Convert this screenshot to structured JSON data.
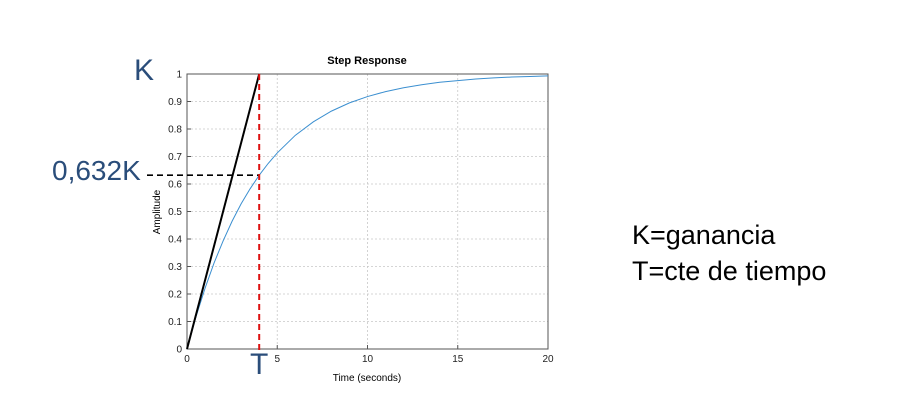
{
  "annotations": {
    "k_label": "K",
    "k632_label": "0,632K",
    "t_label": "T",
    "legend_k": "K=ganancia",
    "legend_t": "T=cte de tiempo"
  },
  "chart_data": {
    "type": "line",
    "title": "Step Response",
    "xlabel": "Time (seconds)",
    "ylabel": "Amplitude",
    "xlim": [
      0,
      20
    ],
    "ylim": [
      0,
      1
    ],
    "xticks": [
      0,
      5,
      10,
      15,
      20
    ],
    "yticks": [
      0,
      0.1,
      0.2,
      0.3,
      0.4,
      0.5,
      0.6,
      0.7,
      0.8,
      0.9,
      1
    ],
    "xtick_labels": [
      "0",
      "5",
      "10",
      "15",
      "20"
    ],
    "ytick_labels": [
      "0",
      "0.1",
      "0.2",
      "0.3",
      "0.4",
      "0.5",
      "0.6",
      "0.7",
      "0.8",
      "0.9",
      "1"
    ],
    "grid": true,
    "series": [
      {
        "color": "#3b8fd0",
        "x": [
          0,
          0.5,
          1,
          1.5,
          2,
          2.5,
          3,
          3.5,
          4,
          4.5,
          5,
          6,
          7,
          8,
          9,
          10,
          11,
          12,
          13,
          14,
          15,
          16,
          17,
          18,
          19,
          20
        ],
        "y": [
          0,
          0.118,
          0.221,
          0.313,
          0.393,
          0.465,
          0.528,
          0.583,
          0.632,
          0.675,
          0.713,
          0.777,
          0.826,
          0.865,
          0.895,
          0.918,
          0.936,
          0.95,
          0.961,
          0.97,
          0.976,
          0.982,
          0.986,
          0.989,
          0.991,
          0.993
        ]
      }
    ],
    "annotations": {
      "time_constant": 4,
      "gain": 1,
      "level_0632": 0.632,
      "tangent_color": "#000000",
      "vertical_color": "#dd1111",
      "horizontal_color": "#000000"
    }
  }
}
